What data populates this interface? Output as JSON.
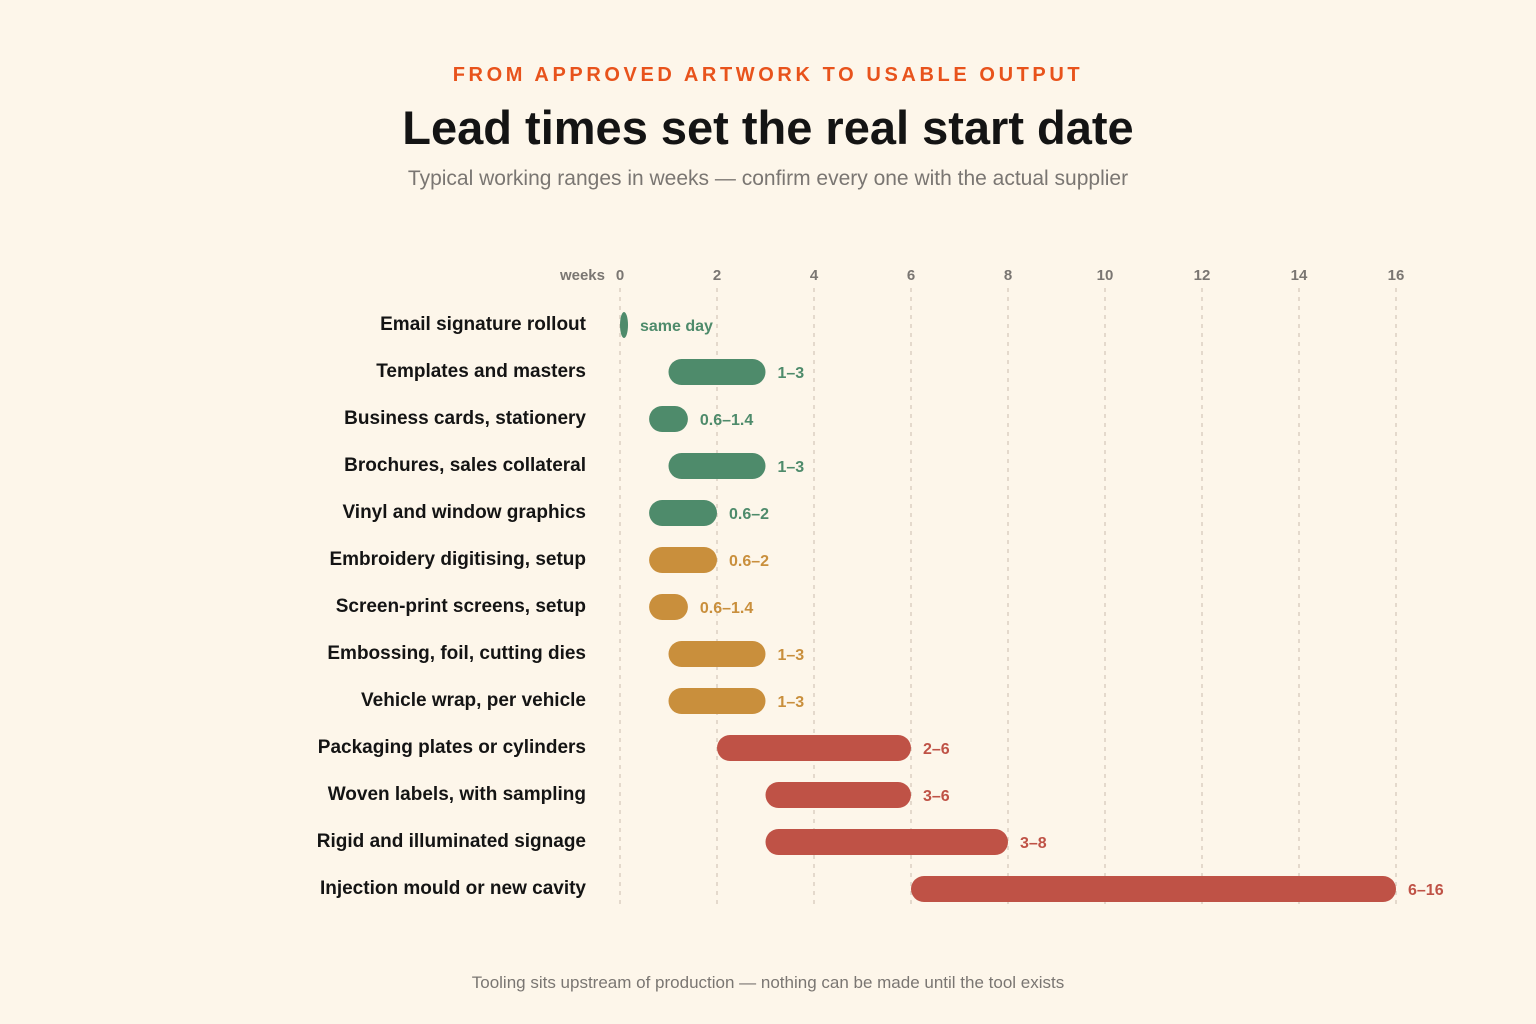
{
  "header": {
    "eyebrow": "FROM APPROVED ARTWORK TO USABLE OUTPUT",
    "title": "Lead times set the real start date",
    "subtitle": "Typical working ranges in weeks — confirm every one with the actual supplier"
  },
  "footer": {
    "note": "Tooling sits upstream of production — nothing can be made until the tool exists"
  },
  "colors": {
    "green": "#4e8b6b",
    "amber": "#c98f3c",
    "red": "#bf5246"
  },
  "chart_data": {
    "type": "bar",
    "orientation": "horizontal-range",
    "xlabel": "weeks",
    "xlim": [
      0,
      16
    ],
    "xticks": [
      0,
      2,
      4,
      6,
      8,
      10,
      12,
      14,
      16
    ],
    "grid": true,
    "categories": [
      "Email signature rollout",
      "Templates and masters",
      "Business cards, stationery",
      "Brochures, sales collateral",
      "Vinyl and window graphics",
      "Embroidery digitising, setup",
      "Screen-print screens, setup",
      "Embossing, foil, cutting dies",
      "Vehicle wrap, per vehicle",
      "Packaging plates or cylinders",
      "Woven labels, with sampling",
      "Rigid and illuminated signage",
      "Injection mould or new cavity"
    ],
    "ranges": [
      {
        "min": 0,
        "max": 0,
        "label": "same day",
        "color": "green"
      },
      {
        "min": 1,
        "max": 3,
        "label": "1–3",
        "color": "green"
      },
      {
        "min": 0.6,
        "max": 1.4,
        "label": "0.6–1.4",
        "color": "green"
      },
      {
        "min": 1,
        "max": 3,
        "label": "1–3",
        "color": "green"
      },
      {
        "min": 0.6,
        "max": 2,
        "label": "0.6–2",
        "color": "green"
      },
      {
        "min": 0.6,
        "max": 2,
        "label": "0.6–2",
        "color": "amber"
      },
      {
        "min": 0.6,
        "max": 1.4,
        "label": "0.6–1.4",
        "color": "amber"
      },
      {
        "min": 1,
        "max": 3,
        "label": "1–3",
        "color": "amber"
      },
      {
        "min": 1,
        "max": 3,
        "label": "1–3",
        "color": "amber"
      },
      {
        "min": 2,
        "max": 6,
        "label": "2–6",
        "color": "red"
      },
      {
        "min": 3,
        "max": 6,
        "label": "3–6",
        "color": "red"
      },
      {
        "min": 3,
        "max": 8,
        "label": "3–8",
        "color": "red"
      },
      {
        "min": 6,
        "max": 16,
        "label": "6–16",
        "color": "red"
      }
    ]
  }
}
